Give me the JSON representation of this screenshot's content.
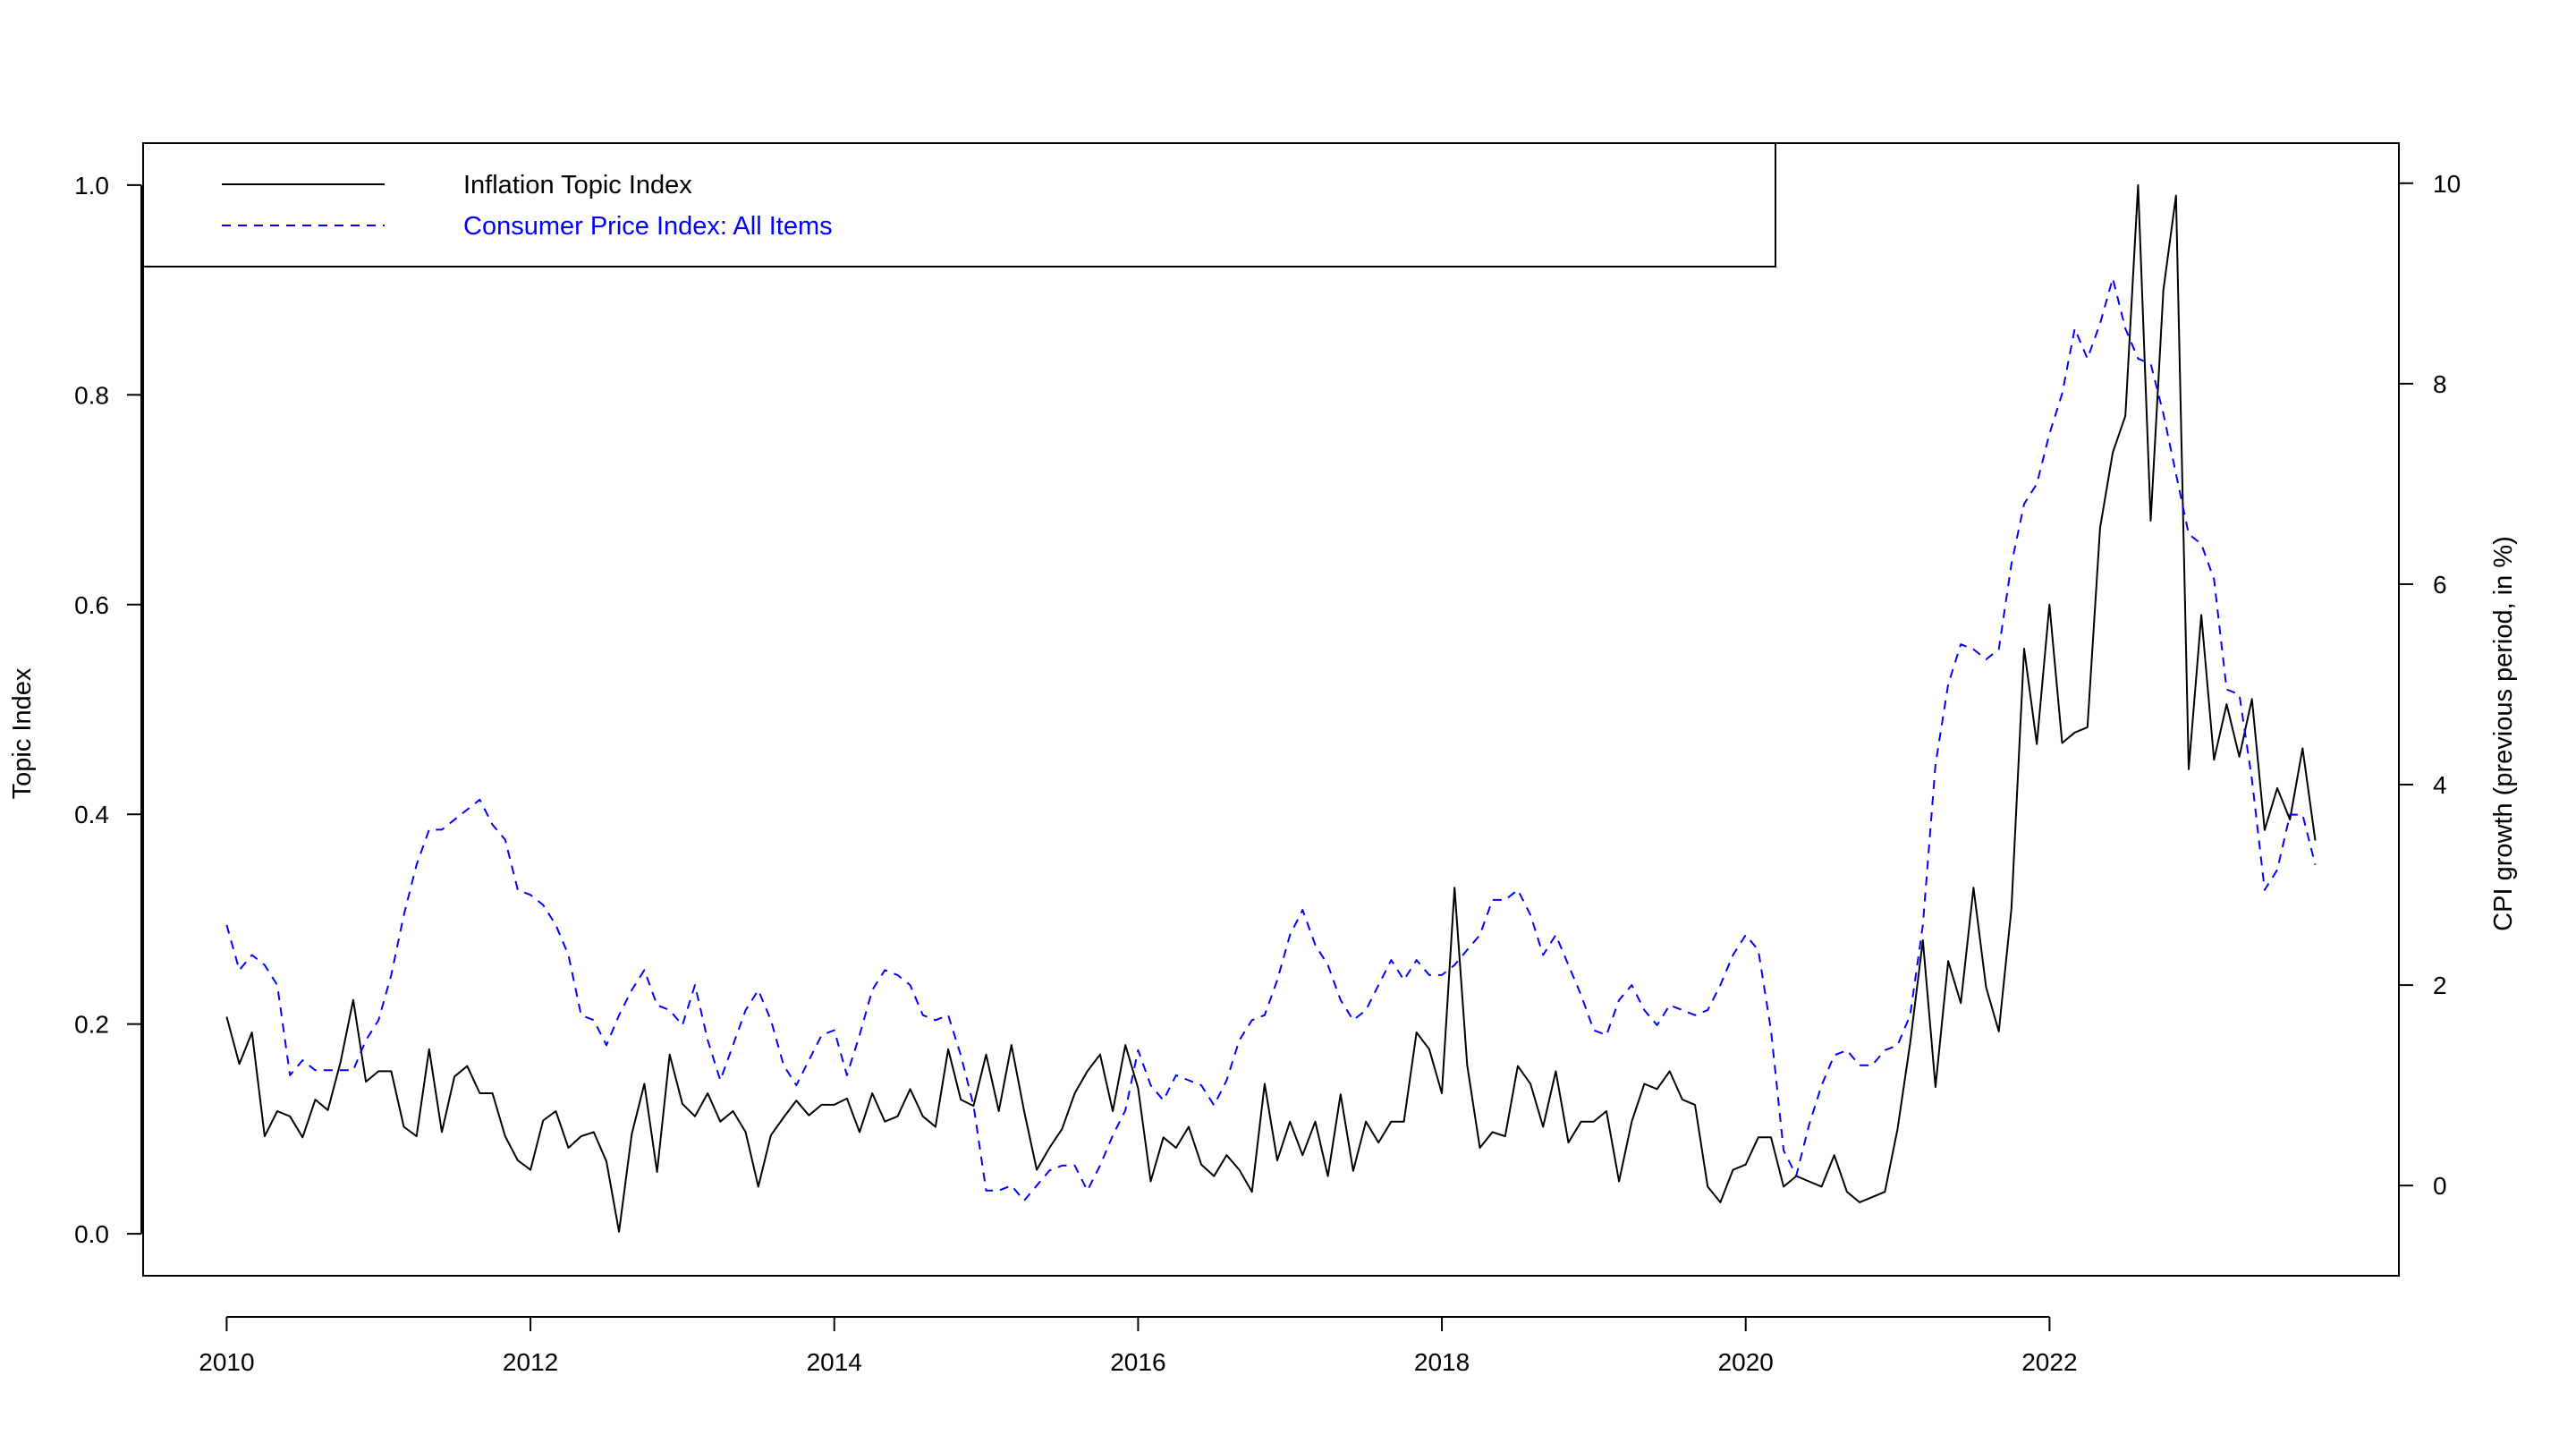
{
  "chart_data": {
    "type": "line",
    "title": "",
    "xlabel": "",
    "ylabel_left": "Topic Index",
    "ylabel_right": "CPI growth (previous period, in %)",
    "x_ticks": [
      "2010",
      "2012",
      "2014",
      "2016",
      "2018",
      "2020",
      "2022"
    ],
    "x_range": [
      2009.45,
      2024.3
    ],
    "y_left_ticks": [
      "0.0",
      "0.2",
      "0.4",
      "0.6",
      "0.8",
      "1.0"
    ],
    "y_left_range": [
      -0.04,
      1.04
    ],
    "y_right_ticks": [
      "0",
      "2",
      "4",
      "6",
      "8",
      "10"
    ],
    "y_right_range": [
      -0.9,
      10.4
    ],
    "grid": false,
    "legend_position": "top-left",
    "x_start": 2010.0,
    "x_step": 0.08333,
    "series": [
      {
        "name": "Inflation Topic Index",
        "axis": "left",
        "color": "#000000",
        "dash": "solid",
        "values": [
          0.207,
          0.162,
          0.192,
          0.093,
          0.117,
          0.112,
          0.092,
          0.128,
          0.118,
          0.164,
          0.223,
          0.145,
          0.155,
          0.155,
          0.102,
          0.093,
          0.176,
          0.097,
          0.15,
          0.16,
          0.134,
          0.134,
          0.093,
          0.07,
          0.061,
          0.108,
          0.117,
          0.082,
          0.093,
          0.097,
          0.069,
          0.002,
          0.095,
          0.143,
          0.059,
          0.171,
          0.124,
          0.112,
          0.134,
          0.107,
          0.117,
          0.097,
          0.045,
          0.094,
          0.111,
          0.127,
          0.113,
          0.123,
          0.123,
          0.129,
          0.097,
          0.134,
          0.107,
          0.112,
          0.138,
          0.112,
          0.102,
          0.176,
          0.128,
          0.122,
          0.171,
          0.117,
          0.18,
          0.117,
          0.061,
          0.082,
          0.1,
          0.134,
          0.155,
          0.171,
          0.117,
          0.18,
          0.139,
          0.05,
          0.092,
          0.082,
          0.102,
          0.066,
          0.055,
          0.075,
          0.061,
          0.04,
          0.143,
          0.07,
          0.107,
          0.075,
          0.107,
          0.055,
          0.133,
          0.06,
          0.107,
          0.087,
          0.107,
          0.107,
          0.192,
          0.176,
          0.134,
          0.33,
          0.161,
          0.082,
          0.097,
          0.093,
          0.16,
          0.143,
          0.102,
          0.155,
          0.087,
          0.107,
          0.107,
          0.117,
          0.05,
          0.107,
          0.143,
          0.138,
          0.155,
          0.128,
          0.123,
          0.045,
          0.03,
          0.061,
          0.066,
          0.092,
          0.092,
          0.045,
          0.055,
          0.05,
          0.045,
          0.075,
          0.04,
          0.03,
          0.035,
          0.04,
          0.1,
          0.182,
          0.28,
          0.14,
          0.26,
          0.22,
          0.33,
          0.235,
          0.193,
          0.31,
          0.558,
          0.467,
          0.6,
          0.468,
          0.478,
          0.483,
          0.673,
          0.745,
          0.78,
          1.0,
          0.68,
          0.9,
          0.99,
          0.443,
          0.59,
          0.452,
          0.505,
          0.455,
          0.51,
          0.385,
          0.425,
          0.395,
          0.463,
          0.375
        ]
      },
      {
        "name": "Consumer Price Index: All Items",
        "axis": "right",
        "color": "#0000ff",
        "dash": "dashed",
        "values": [
          2.6,
          2.15,
          2.3,
          2.2,
          2.0,
          1.1,
          1.25,
          1.15,
          1.15,
          1.15,
          1.15,
          1.45,
          1.65,
          2.1,
          2.7,
          3.2,
          3.55,
          3.55,
          3.65,
          3.75,
          3.85,
          3.6,
          3.45,
          2.95,
          2.9,
          2.8,
          2.6,
          2.3,
          1.7,
          1.65,
          1.4,
          1.7,
          1.95,
          2.15,
          1.8,
          1.75,
          1.6,
          2.0,
          1.45,
          1.05,
          1.4,
          1.75,
          1.95,
          1.65,
          1.2,
          1.0,
          1.25,
          1.5,
          1.55,
          1.1,
          1.5,
          1.95,
          2.15,
          2.1,
          2.0,
          1.7,
          1.65,
          1.7,
          1.3,
          0.8,
          -0.05,
          -0.05,
          0.0,
          -0.15,
          0.0,
          0.15,
          0.2,
          0.2,
          -0.05,
          0.2,
          0.5,
          0.75,
          1.35,
          1.0,
          0.85,
          1.1,
          1.05,
          1.0,
          0.8,
          1.05,
          1.45,
          1.65,
          1.7,
          2.05,
          2.5,
          2.75,
          2.4,
          2.2,
          1.85,
          1.65,
          1.75,
          2.0,
          2.25,
          2.05,
          2.25,
          2.1,
          2.1,
          2.2,
          2.35,
          2.5,
          2.85,
          2.85,
          2.95,
          2.7,
          2.3,
          2.5,
          2.2,
          1.9,
          1.55,
          1.5,
          1.85,
          2.0,
          1.75,
          1.6,
          1.8,
          1.75,
          1.7,
          1.75,
          2.0,
          2.3,
          2.5,
          2.35,
          1.55,
          0.35,
          0.1,
          0.6,
          1.0,
          1.3,
          1.35,
          1.2,
          1.2,
          1.35,
          1.4,
          1.7,
          2.6,
          4.2,
          5.0,
          5.4,
          5.35,
          5.25,
          5.35,
          6.2,
          6.8,
          7.0,
          7.5,
          7.9,
          8.55,
          8.25,
          8.6,
          9.05,
          8.55,
          8.25,
          8.2,
          7.7,
          7.1,
          6.5,
          6.4,
          6.05,
          4.95,
          4.9,
          4.05,
          2.95,
          3.15,
          3.7,
          3.7,
          3.2
        ]
      }
    ]
  }
}
